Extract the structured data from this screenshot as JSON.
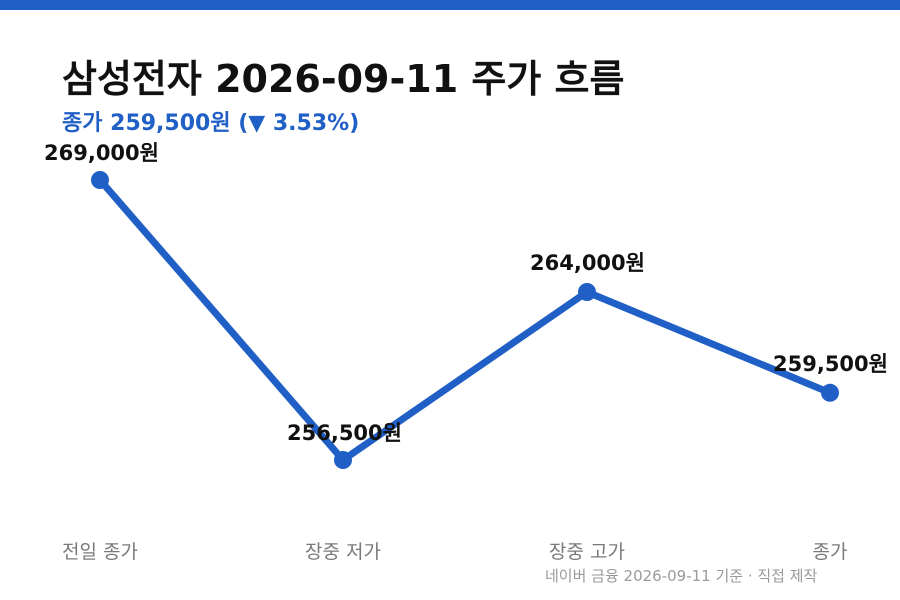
{
  "colors": {
    "accent": "#1f5fc6",
    "line": "#1f5fc6",
    "text": "#111111",
    "muted": "#7a7a7a",
    "source": "#9a9a9a"
  },
  "header": {
    "title": "삼성전자 2026-09-11 주가 흐름",
    "subtitle": "종가 259,500원 (▼ 3.53%)"
  },
  "footer": {
    "source": "네이버 금융 2026-09-11 기준 · 직접 제작"
  },
  "chart_data": {
    "type": "line",
    "categories": [
      "전일 종가",
      "장중 저가",
      "장중 고가",
      "종가"
    ],
    "values": [
      269000,
      256500,
      264000,
      259500
    ],
    "value_labels": [
      "269,000원",
      "256,500원",
      "264,000원",
      "259,500원"
    ],
    "unit": "원",
    "grid": false,
    "legend": "none"
  }
}
